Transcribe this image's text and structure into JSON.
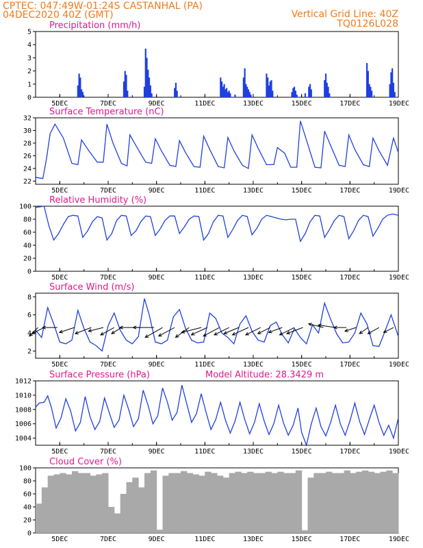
{
  "header": {
    "line1_left": "CPTEC:   047:49W-01:24S   CASTANHAL (PA)",
    "line2_left": "04DEC2020 40Z (GMT)",
    "line1_right": "Vertical Grid Line: 40Z",
    "line2_right": "TQ0126L028"
  },
  "colors": {
    "header": "#f07a1a",
    "title": "#e0188c",
    "line": "#1f3fe0",
    "bar": "#1f3fe0",
    "cloud": "#a9a9a9",
    "arrow": "#000000"
  },
  "x_axis": {
    "range": [
      4.0,
      19.0
    ],
    "ticks": [
      5,
      7,
      9,
      11,
      13,
      15,
      17,
      19
    ],
    "tick_labels": [
      "5DEC",
      "7DEC",
      "9DEC",
      "11DEC",
      "13DEC",
      "15DEC",
      "17DEC",
      "19DEC"
    ]
  },
  "chart_data": [
    {
      "id": "precip",
      "type": "bar",
      "title": "Precipitation (mm/h)",
      "ylim": [
        0,
        5
      ],
      "yticks": [
        0,
        1,
        2,
        3,
        4,
        5
      ],
      "x": [
        5.75,
        5.8,
        5.85,
        5.9,
        5.95,
        7.65,
        7.7,
        7.75,
        7.8,
        8.5,
        8.55,
        8.6,
        8.65,
        8.7,
        8.75,
        8.8,
        9.75,
        9.8,
        9.85,
        11.65,
        11.7,
        11.75,
        11.8,
        11.85,
        11.9,
        11.95,
        12.0,
        12.05,
        12.25,
        12.6,
        12.65,
        12.7,
        12.75,
        12.8,
        12.85,
        12.9,
        13.55,
        13.6,
        13.65,
        13.7,
        13.75,
        13.8,
        14.6,
        14.65,
        14.7,
        14.75,
        14.8,
        15.15,
        15.3,
        15.35,
        15.4,
        15.95,
        16.0,
        16.05,
        16.1,
        16.15,
        17.7,
        17.75,
        17.8,
        17.85,
        17.9,
        18.65,
        18.7,
        18.75,
        18.8,
        18.85
      ],
      "values": [
        0.9,
        1.8,
        1.5,
        0.6,
        0.4,
        1.2,
        2.0,
        1.7,
        0.5,
        0.8,
        3.7,
        3.0,
        2.1,
        1.5,
        0.9,
        0.3,
        0.7,
        1.1,
        0.5,
        1.5,
        1.2,
        0.8,
        1.0,
        0.6,
        0.7,
        0.4,
        0.5,
        0.3,
        0.2,
        1.5,
        2.2,
        1.0,
        0.8,
        0.6,
        0.4,
        0.2,
        1.8,
        1.5,
        0.9,
        1.2,
        1.3,
        0.5,
        0.4,
        0.7,
        0.8,
        0.5,
        0.2,
        0.3,
        0.8,
        1.0,
        0.6,
        1.3,
        1.8,
        1.1,
        0.8,
        0.3,
        2.6,
        2.0,
        1.0,
        0.8,
        0.5,
        1.0,
        1.9,
        2.2,
        1.1,
        0.4
      ]
    },
    {
      "id": "temp",
      "type": "line",
      "title": "Surface Temperature (nC)",
      "ylim": [
        21.5,
        32
      ],
      "yticks": [
        22,
        24,
        26,
        28,
        30,
        32
      ],
      "x": [
        4.0,
        4.3,
        4.45,
        4.6,
        4.8,
        5.15,
        5.5,
        5.75,
        5.9,
        6.2,
        6.55,
        6.8,
        6.95,
        7.2,
        7.55,
        7.78,
        7.9,
        8.15,
        8.55,
        8.8,
        8.95,
        9.2,
        9.55,
        9.8,
        9.95,
        10.2,
        10.55,
        10.8,
        10.95,
        11.2,
        11.55,
        11.8,
        11.95,
        12.2,
        12.55,
        12.8,
        12.95,
        13.2,
        13.55,
        13.85,
        14.0,
        14.3,
        14.55,
        14.8,
        14.95,
        15.2,
        15.55,
        15.8,
        15.95,
        16.2,
        16.55,
        16.8,
        16.95,
        17.2,
        17.55,
        17.8,
        17.95,
        18.2,
        18.55,
        18.8,
        19.0
      ],
      "values": [
        22.6,
        22.4,
        25.5,
        29.5,
        31.0,
        28.8,
        24.8,
        24.6,
        28.5,
        26.8,
        25.0,
        25.0,
        31.0,
        28.0,
        24.8,
        24.4,
        29.3,
        27.6,
        25.0,
        24.8,
        28.7,
        26.8,
        24.5,
        24.3,
        28.4,
        26.5,
        24.3,
        24.2,
        29.1,
        27.0,
        24.3,
        24.1,
        28.9,
        26.8,
        24.5,
        24.0,
        29.3,
        27.2,
        24.6,
        24.6,
        27.3,
        26.4,
        24.2,
        24.2,
        31.5,
        28.5,
        24.2,
        24.1,
        29.9,
        27.6,
        24.5,
        24.3,
        29.3,
        27.0,
        24.6,
        24.3,
        28.8,
        26.8,
        24.5,
        28.8,
        26.5
      ]
    },
    {
      "id": "rh",
      "type": "line",
      "title": "Relative Humidity (%)",
      "ylim": [
        0,
        100
      ],
      "yticks": [
        0,
        20,
        40,
        60,
        80,
        100
      ],
      "x": [
        4.0,
        4.35,
        4.55,
        4.75,
        4.95,
        5.15,
        5.35,
        5.55,
        5.75,
        5.95,
        6.15,
        6.35,
        6.55,
        6.75,
        6.95,
        7.15,
        7.35,
        7.55,
        7.75,
        7.95,
        8.15,
        8.35,
        8.55,
        8.75,
        8.95,
        9.15,
        9.35,
        9.55,
        9.75,
        9.95,
        10.15,
        10.35,
        10.55,
        10.75,
        10.95,
        11.15,
        11.35,
        11.55,
        11.75,
        11.95,
        12.15,
        12.35,
        12.55,
        12.75,
        12.95,
        13.15,
        13.35,
        13.55,
        13.75,
        13.95,
        14.15,
        14.35,
        14.55,
        14.75,
        14.95,
        15.15,
        15.35,
        15.55,
        15.75,
        15.95,
        16.15,
        16.35,
        16.55,
        16.75,
        16.95,
        17.15,
        17.35,
        17.55,
        17.75,
        17.95,
        18.15,
        18.35,
        18.55,
        18.75,
        19.0
      ],
      "values": [
        98,
        100,
        70,
        48,
        58,
        72,
        84,
        86,
        85,
        52,
        62,
        76,
        84,
        82,
        48,
        58,
        78,
        86,
        85,
        55,
        62,
        76,
        85,
        84,
        55,
        65,
        78,
        85,
        85,
        58,
        68,
        80,
        85,
        84,
        48,
        58,
        76,
        86,
        85,
        52,
        64,
        78,
        86,
        84,
        56,
        66,
        80,
        86,
        84,
        82,
        80,
        79,
        80,
        80,
        46,
        58,
        76,
        86,
        85,
        52,
        64,
        78,
        86,
        84,
        50,
        62,
        78,
        86,
        84,
        54,
        66,
        80,
        86,
        88,
        86
      ]
    },
    {
      "id": "wind",
      "type": "line",
      "title": "Surface Wind (m/s)",
      "ylim": [
        1.2,
        8.4
      ],
      "yticks": [
        2,
        4,
        6,
        8
      ],
      "x": [
        4.0,
        4.25,
        4.5,
        4.75,
        5.0,
        5.25,
        5.5,
        5.75,
        6.0,
        6.25,
        6.5,
        6.75,
        7.0,
        7.25,
        7.5,
        7.75,
        8.0,
        8.25,
        8.5,
        8.7,
        8.95,
        9.2,
        9.45,
        9.7,
        9.95,
        10.2,
        10.45,
        10.7,
        10.95,
        11.2,
        11.45,
        11.7,
        11.95,
        12.2,
        12.45,
        12.7,
        12.95,
        13.2,
        13.45,
        13.7,
        13.95,
        14.2,
        14.45,
        14.7,
        14.95,
        15.2,
        15.45,
        15.7,
        15.95,
        16.2,
        16.45,
        16.7,
        16.95,
        17.2,
        17.45,
        17.7,
        17.95,
        18.2,
        18.45,
        18.7,
        19.0
      ],
      "values": [
        4.3,
        3.5,
        6.8,
        5.0,
        3.0,
        2.8,
        3.2,
        6.5,
        4.5,
        3.0,
        2.6,
        2.0,
        4.8,
        6.2,
        4.3,
        3.2,
        2.8,
        3.6,
        7.8,
        6.0,
        3.0,
        2.8,
        3.2,
        5.8,
        6.6,
        4.5,
        3.2,
        2.9,
        3.0,
        6.2,
        5.6,
        4.0,
        3.5,
        2.8,
        5.0,
        5.9,
        4.2,
        3.2,
        3.0,
        4.8,
        5.2,
        3.8,
        2.9,
        4.5,
        3.5,
        2.8,
        4.9,
        4.0,
        7.3,
        5.5,
        3.9,
        2.9,
        3.0,
        4.0,
        6.2,
        5.0,
        2.6,
        2.5,
        4.2,
        6.0,
        3.6
      ],
      "vectors": [
        {
          "x": 4.1,
          "u": -0.7,
          "v": -0.7
        },
        {
          "x": 4.35,
          "u": -1.0,
          "v": -0.5
        },
        {
          "x": 4.9,
          "u": -1.2,
          "v": 0.0
        },
        {
          "x": 5.6,
          "u": -1.2,
          "v": -0.4
        },
        {
          "x": 6.3,
          "u": -1.3,
          "v": -0.5
        },
        {
          "x": 6.8,
          "u": -1.2,
          "v": -0.3
        },
        {
          "x": 7.25,
          "u": -1.1,
          "v": -0.6
        },
        {
          "x": 7.55,
          "u": -0.8,
          "v": -0.5
        },
        {
          "x": 8.3,
          "u": -1.6,
          "v": 0.0
        },
        {
          "x": 8.9,
          "u": -1.7,
          "v": 0.0
        },
        {
          "x": 9.25,
          "u": -1.4,
          "v": -0.8
        },
        {
          "x": 9.75,
          "u": -1.3,
          "v": -0.7
        },
        {
          "x": 10.35,
          "u": -1.1,
          "v": -0.8
        },
        {
          "x": 10.85,
          "u": -1.6,
          "v": -0.4
        },
        {
          "x": 11.1,
          "u": -1.3,
          "v": -0.6
        },
        {
          "x": 11.6,
          "u": -1.3,
          "v": -0.7
        },
        {
          "x": 12.0,
          "u": -1.2,
          "v": -0.6
        },
        {
          "x": 12.4,
          "u": -1.2,
          "v": -0.5
        },
        {
          "x": 12.8,
          "u": -1.3,
          "v": -0.6
        },
        {
          "x": 13.3,
          "u": -1.2,
          "v": -0.6
        },
        {
          "x": 13.7,
          "u": -1.0,
          "v": -0.5
        },
        {
          "x": 14.2,
          "u": -1.1,
          "v": -0.4
        },
        {
          "x": 14.7,
          "u": -1.2,
          "v": -0.6
        },
        {
          "x": 15.05,
          "u": -1.3,
          "v": -0.5
        },
        {
          "x": 15.9,
          "u": -1.2,
          "v": 0.3
        },
        {
          "x": 16.4,
          "u": -1.4,
          "v": 0.2
        },
        {
          "x": 16.85,
          "u": -1.0,
          "v": 0.0
        },
        {
          "x": 17.25,
          "u": -0.9,
          "v": -0.3
        },
        {
          "x": 17.75,
          "u": -0.7,
          "v": -0.5
        },
        {
          "x": 18.2,
          "u": -0.9,
          "v": -0.5
        },
        {
          "x": 18.8,
          "u": -0.8,
          "v": -0.4
        }
      ]
    },
    {
      "id": "pres",
      "type": "line",
      "title": "Surface Pressure (hPa)",
      "annotation": "Model Altitude: 28.3429 m",
      "ylim": [
        1003,
        1012
      ],
      "yticks": [
        1004,
        1006,
        1008,
        1010,
        1012
      ],
      "x": [
        4.0,
        4.15,
        4.35,
        4.5,
        4.65,
        4.85,
        5.05,
        5.25,
        5.45,
        5.65,
        5.85,
        6.05,
        6.25,
        6.45,
        6.65,
        6.85,
        7.05,
        7.25,
        7.45,
        7.65,
        7.85,
        8.05,
        8.25,
        8.45,
        8.65,
        8.85,
        9.05,
        9.25,
        9.45,
        9.65,
        9.85,
        10.05,
        10.25,
        10.45,
        10.65,
        10.85,
        11.05,
        11.25,
        11.45,
        11.65,
        11.85,
        12.05,
        12.25,
        12.45,
        12.65,
        12.85,
        13.05,
        13.25,
        13.45,
        13.65,
        13.85,
        14.05,
        14.25,
        14.45,
        14.65,
        14.85,
        15.0,
        15.2,
        15.4,
        15.6,
        15.8,
        16.0,
        16.2,
        16.4,
        16.6,
        16.8,
        17.0,
        17.2,
        17.4,
        17.6,
        17.8,
        18.0,
        18.2,
        18.4,
        18.6,
        18.8,
        19.0
      ],
      "values": [
        1008.3,
        1008.9,
        1009.0,
        1009.9,
        1008.3,
        1005.4,
        1006.8,
        1009.5,
        1007.8,
        1005.0,
        1006.2,
        1009.8,
        1007.0,
        1005.2,
        1006.3,
        1009.6,
        1007.5,
        1005.5,
        1006.5,
        1010.0,
        1008.0,
        1005.6,
        1006.7,
        1010.7,
        1008.6,
        1006.0,
        1007.1,
        1011.0,
        1009.0,
        1006.5,
        1007.6,
        1011.4,
        1008.8,
        1006.2,
        1007.4,
        1010.2,
        1007.6,
        1005.2,
        1006.6,
        1009.0,
        1006.5,
        1004.7,
        1006.4,
        1009.0,
        1006.6,
        1004.6,
        1006.2,
        1008.8,
        1006.4,
        1004.5,
        1006.0,
        1008.6,
        1006.1,
        1004.4,
        1005.8,
        1008.2,
        1004.8,
        1003.0,
        1006.0,
        1008.2,
        1005.6,
        1004.3,
        1006.2,
        1008.6,
        1006.0,
        1004.4,
        1006.4,
        1008.9,
        1006.3,
        1004.5,
        1006.6,
        1008.6,
        1006.2,
        1004.4,
        1005.8,
        1004.0,
        1006.8
      ]
    },
    {
      "id": "cloud",
      "type": "bar",
      "title": "Cloud Cover (%)",
      "ylim": [
        0,
        100
      ],
      "yticks": [
        0,
        20,
        40,
        60,
        80,
        100
      ],
      "x": [
        4.0,
        4.25,
        4.5,
        4.75,
        5.0,
        5.25,
        5.5,
        5.75,
        6.0,
        6.25,
        6.5,
        6.75,
        7.0,
        7.25,
        7.5,
        7.75,
        8.0,
        8.25,
        8.5,
        8.75,
        9.0,
        9.25,
        9.5,
        9.75,
        10.0,
        10.25,
        10.5,
        10.75,
        11.0,
        11.25,
        11.5,
        11.75,
        12.0,
        12.25,
        12.5,
        12.75,
        13.0,
        13.25,
        13.5,
        13.75,
        14.0,
        14.25,
        14.5,
        14.75,
        15.0,
        15.25,
        15.5,
        15.75,
        16.0,
        16.25,
        16.5,
        16.75,
        17.0,
        17.25,
        17.5,
        17.75,
        18.0,
        18.25,
        18.5,
        18.75
      ],
      "values": [
        45,
        70,
        88,
        90,
        92,
        90,
        95,
        92,
        92,
        88,
        90,
        92,
        40,
        30,
        60,
        78,
        85,
        70,
        92,
        96,
        5,
        88,
        92,
        92,
        95,
        92,
        90,
        88,
        94,
        92,
        88,
        85,
        92,
        94,
        92,
        94,
        92,
        92,
        94,
        92,
        94,
        92,
        92,
        96,
        4,
        85,
        92,
        92,
        94,
        92,
        92,
        96,
        92,
        94,
        96,
        94,
        92,
        94,
        96,
        92
      ]
    }
  ]
}
